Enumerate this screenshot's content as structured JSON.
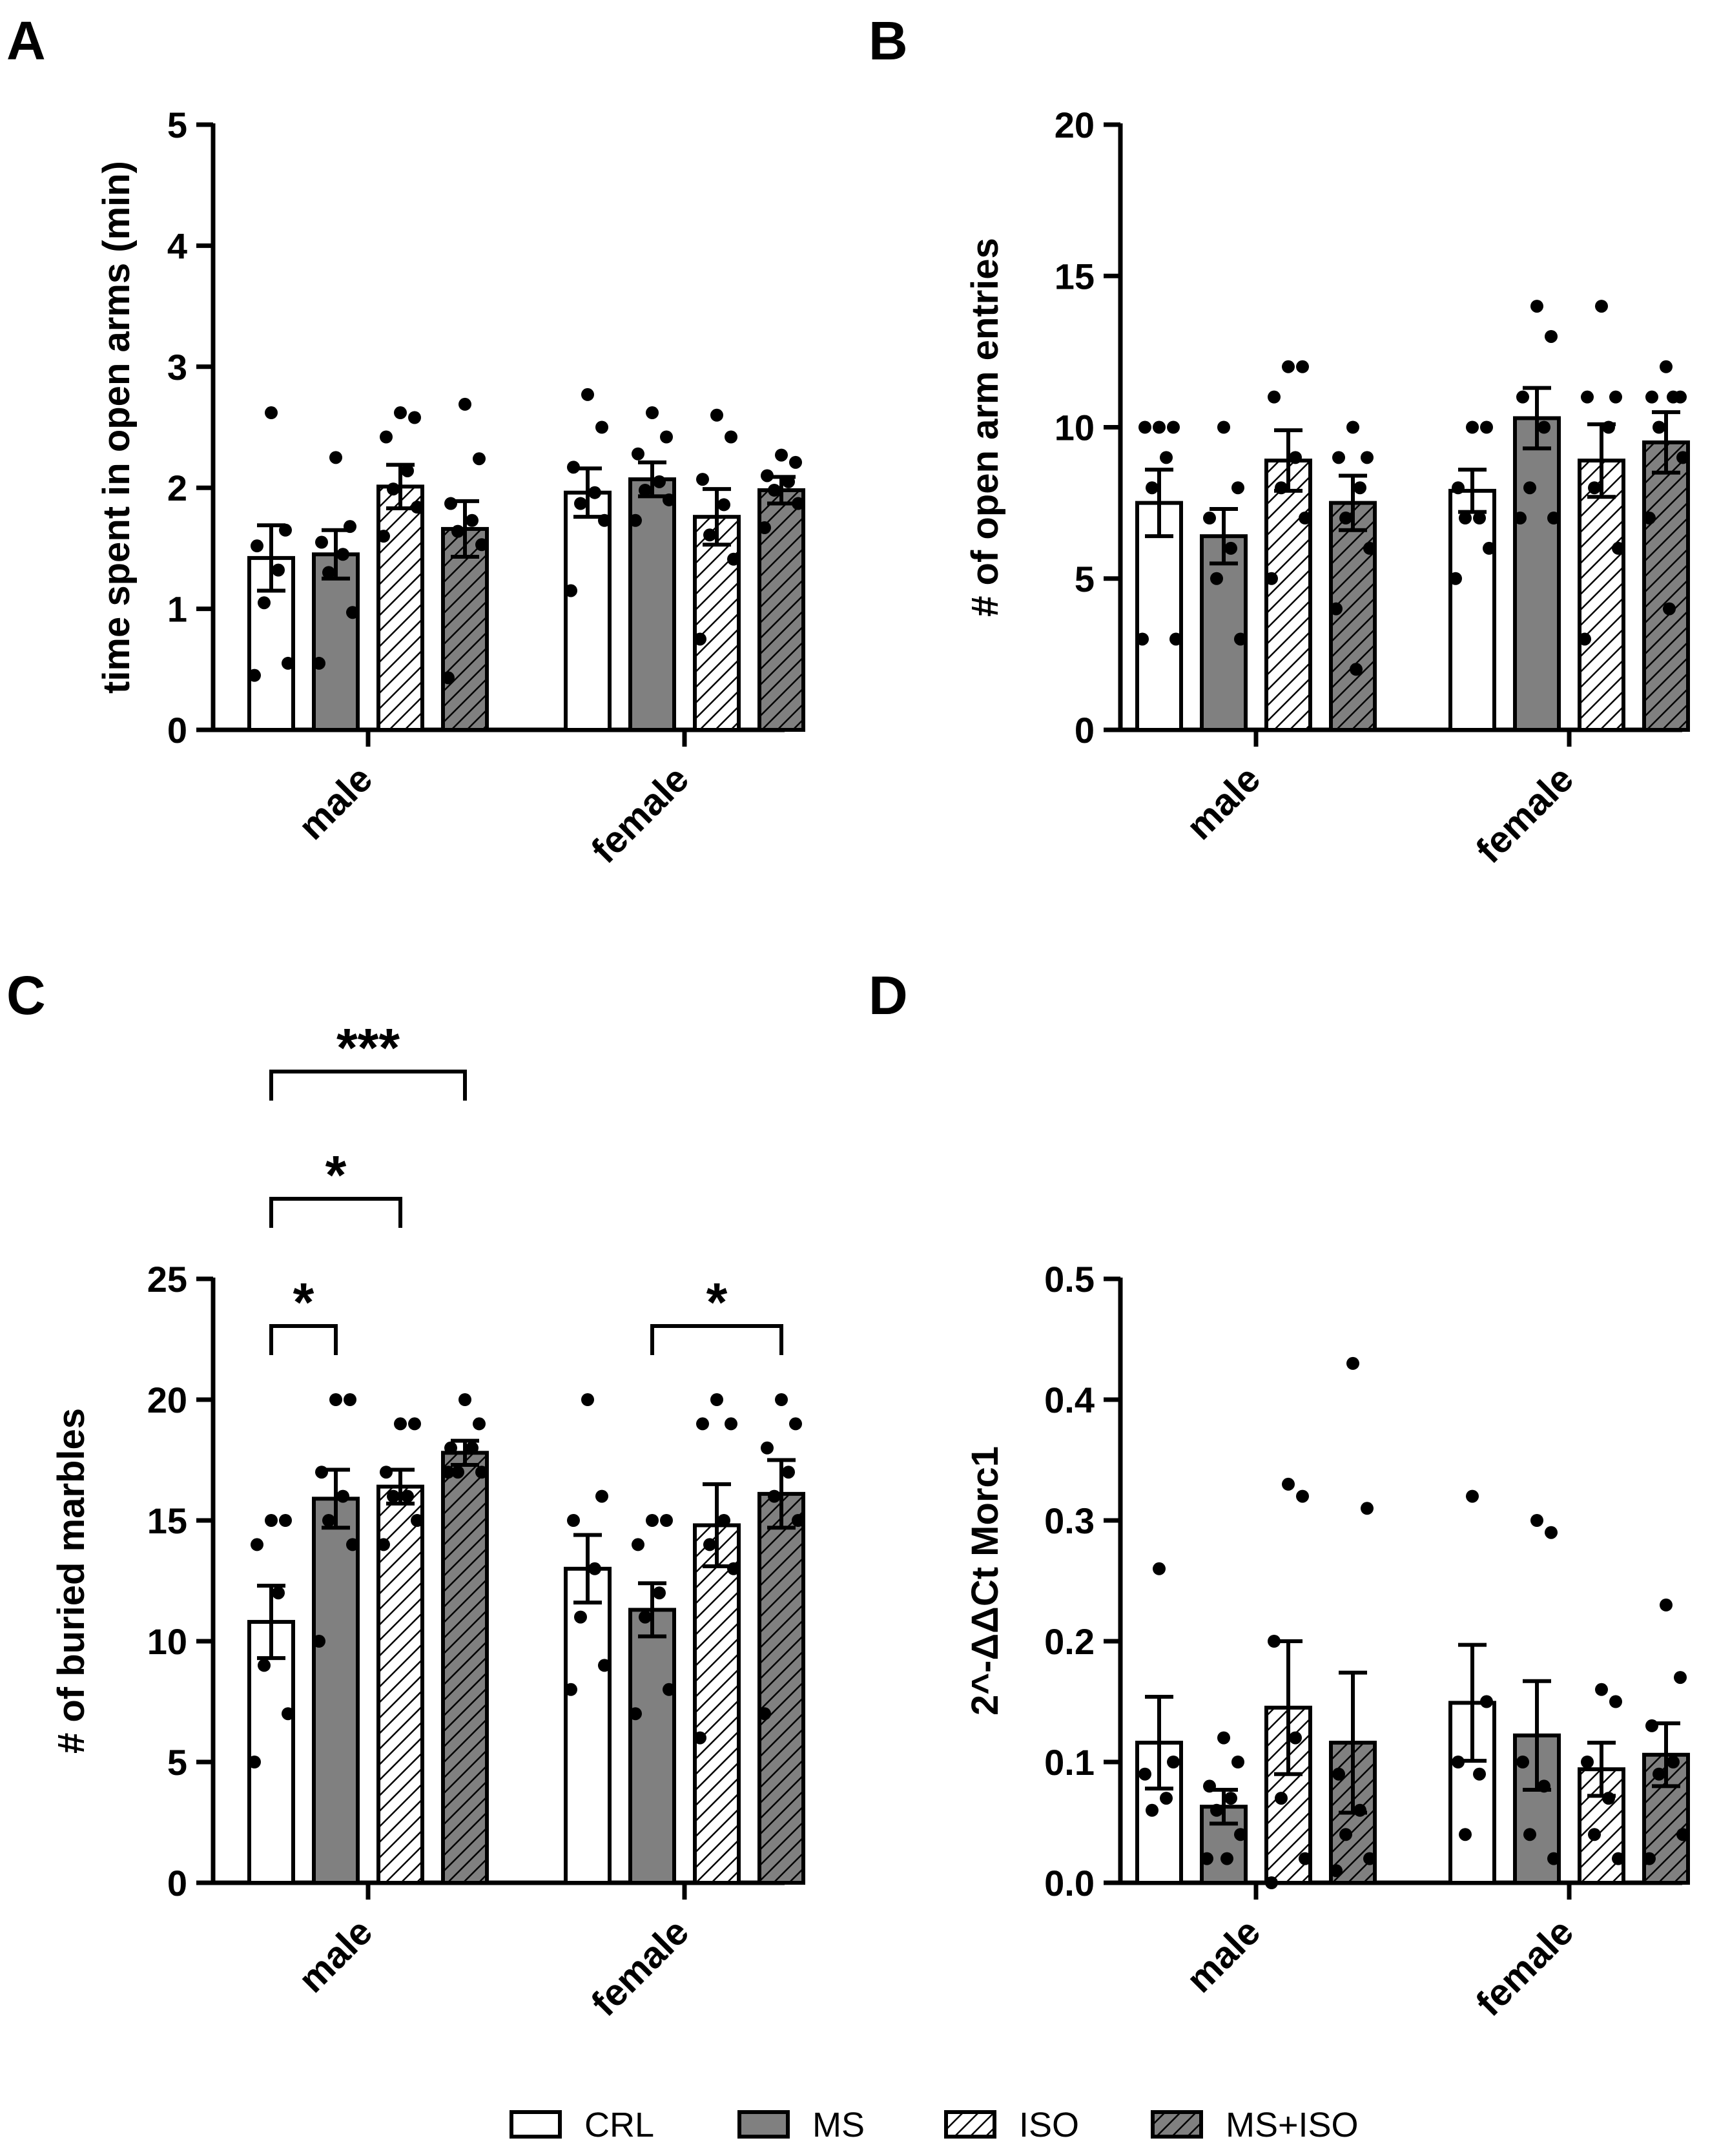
{
  "colors": {
    "CRL": "#ffffff",
    "MS": "#808080",
    "ISO": "#ffffff",
    "MS+ISO": "#808080",
    "stroke": "#000000"
  },
  "legend": [
    {
      "label": "CRL",
      "pattern": "solid-white"
    },
    {
      "label": "MS",
      "pattern": "solid-gray"
    },
    {
      "label": "ISO",
      "pattern": "hatch-white"
    },
    {
      "label": "MS+ISO",
      "pattern": "hatch-gray"
    }
  ],
  "chart_data": [
    {
      "panel": "A",
      "type": "bar",
      "ylabel": "time spent in open arms (min)",
      "ylim": [
        0,
        5
      ],
      "yticks": [
        0,
        1,
        2,
        3,
        4,
        5
      ],
      "categories": [
        "male",
        "female"
      ],
      "series": [
        {
          "name": "CRL",
          "values": [
            1.42,
            1.96
          ],
          "sem": [
            0.27,
            0.2
          ],
          "points": [
            [
              2.62,
              1.65,
              1.52,
              1.32,
              1.05,
              0.55,
              0.45
            ],
            [
              2.77,
              2.5,
              2.17,
              1.96,
              1.87,
              1.73,
              1.15
            ]
          ]
        },
        {
          "name": "MS",
          "values": [
            1.45,
            2.07
          ],
          "sem": [
            0.2,
            0.14
          ],
          "points": [
            [
              2.25,
              1.68,
              1.55,
              1.45,
              1.3,
              0.97,
              0.55
            ],
            [
              2.62,
              2.42,
              2.28,
              2.05,
              1.98,
              1.9,
              1.73
            ]
          ]
        },
        {
          "name": "ISO",
          "values": [
            2.01,
            1.76
          ],
          "sem": [
            0.18,
            0.23
          ],
          "points": [
            [
              2.62,
              2.58,
              2.42,
              2.14,
              1.99,
              1.84,
              1.6
            ],
            [
              2.6,
              2.42,
              2.07,
              1.86,
              1.61,
              1.41,
              0.75
            ]
          ]
        },
        {
          "name": "MS+ISO",
          "values": [
            1.66,
            1.98
          ],
          "sem": [
            0.23,
            0.11
          ],
          "points": [
            [
              2.69,
              2.24,
              1.87,
              1.73,
              1.64,
              1.53,
              0.43
            ],
            [
              2.27,
              2.21,
              2.1,
              2.05,
              1.98,
              1.87,
              1.67
            ]
          ]
        }
      ],
      "annotations": []
    },
    {
      "panel": "B",
      "type": "bar",
      "ylabel": "# of open arm entries",
      "ylim": [
        0,
        20
      ],
      "yticks": [
        0,
        5,
        10,
        15,
        20
      ],
      "categories": [
        "male",
        "female"
      ],
      "series": [
        {
          "name": "CRL",
          "values": [
            7.5,
            7.9
          ],
          "sem": [
            1.1,
            0.7
          ],
          "points": [
            [
              10,
              10,
              10,
              9,
              8,
              3,
              3
            ],
            [
              10,
              10,
              8,
              7,
              7,
              6,
              5
            ]
          ]
        },
        {
          "name": "MS",
          "values": [
            6.4,
            10.3
          ],
          "sem": [
            0.9,
            1.0
          ],
          "points": [
            [
              10,
              8,
              7,
              6,
              5,
              3
            ],
            [
              14,
              13,
              11,
              10,
              8,
              7,
              7
            ]
          ]
        },
        {
          "name": "ISO",
          "values": [
            8.9,
            8.9
          ],
          "sem": [
            1.0,
            1.2
          ],
          "points": [
            [
              12,
              12,
              11,
              9,
              8,
              7,
              5
            ],
            [
              14,
              11,
              11,
              10,
              8,
              6,
              3
            ]
          ]
        },
        {
          "name": "MS+ISO",
          "values": [
            7.5,
            9.5
          ],
          "sem": [
            0.9,
            1.0
          ],
          "points": [
            [
              10,
              9,
              9,
              8,
              7,
              6,
              4,
              2
            ],
            [
              12,
              11,
              11,
              11,
              10,
              9,
              7,
              4
            ]
          ]
        }
      ],
      "annotations": []
    },
    {
      "panel": "C",
      "type": "bar",
      "ylabel": "# of buried marbles",
      "ylim": [
        0,
        25
      ],
      "yticks": [
        0,
        5,
        10,
        15,
        20,
        25
      ],
      "categories": [
        "male",
        "female"
      ],
      "series": [
        {
          "name": "CRL",
          "values": [
            10.8,
            13.0
          ],
          "sem": [
            1.5,
            1.4
          ],
          "points": [
            [
              15,
              15,
              14,
              12,
              9,
              7,
              5
            ],
            [
              20,
              16,
              15,
              13,
              11,
              9,
              8
            ]
          ]
        },
        {
          "name": "MS",
          "values": [
            15.9,
            11.3
          ],
          "sem": [
            1.2,
            1.1
          ],
          "points": [
            [
              20,
              20,
              17,
              16,
              15,
              14,
              10
            ],
            [
              15,
              15,
              14,
              12,
              11,
              8,
              7
            ]
          ]
        },
        {
          "name": "ISO",
          "values": [
            16.4,
            14.8
          ],
          "sem": [
            0.7,
            1.7
          ],
          "points": [
            [
              19,
              19,
              17,
              16,
              16,
              15,
              14
            ],
            [
              20,
              19,
              19,
              15,
              14,
              13,
              6
            ]
          ]
        },
        {
          "name": "MS+ISO",
          "values": [
            17.8,
            16.1
          ],
          "sem": [
            0.5,
            1.4
          ],
          "points": [
            [
              20,
              19,
              18,
              18,
              17,
              17,
              17
            ],
            [
              20,
              19,
              18,
              17,
              16,
              15,
              7
            ]
          ]
        }
      ],
      "annotations": [
        {
          "label": "*",
          "category": 0,
          "from": 0,
          "to": 1,
          "level": 0
        },
        {
          "label": "*",
          "category": 0,
          "from": 0,
          "to": 2,
          "level": 1
        },
        {
          "label": "***",
          "category": 0,
          "from": 0,
          "to": 3,
          "level": 2
        },
        {
          "label": "*",
          "category": 1,
          "from": 1,
          "to": 3,
          "level": 0
        }
      ]
    },
    {
      "panel": "D",
      "type": "bar",
      "ylabel": "2^-ΔΔCt  Morc1",
      "ylim": [
        0,
        0.5
      ],
      "yticks": [
        "0.0",
        "0.1",
        "0.2",
        "0.3",
        "0.4",
        "0.5"
      ],
      "categories": [
        "male",
        "female"
      ],
      "series": [
        {
          "name": "CRL",
          "values": [
            0.116,
            0.149
          ],
          "sem": [
            0.038,
            0.048
          ],
          "points": [
            [
              0.26,
              0.1,
              0.09,
              0.07,
              0.06
            ],
            [
              0.32,
              0.15,
              0.1,
              0.09,
              0.04
            ]
          ]
        },
        {
          "name": "MS",
          "values": [
            0.063,
            0.122
          ],
          "sem": [
            0.014,
            0.045
          ],
          "points": [
            [
              0.12,
              0.1,
              0.08,
              0.07,
              0.06,
              0.04,
              0.02,
              0.02
            ],
            [
              0.3,
              0.29,
              0.1,
              0.08,
              0.04,
              0.02
            ]
          ]
        },
        {
          "name": "ISO",
          "values": [
            0.145,
            0.094
          ],
          "sem": [
            0.055,
            0.022
          ],
          "points": [
            [
              0.33,
              0.32,
              0.2,
              0.12,
              0.07,
              0.02,
              0.0
            ],
            [
              0.16,
              0.15,
              0.1,
              0.07,
              0.04,
              0.02
            ]
          ]
        },
        {
          "name": "MS+ISO",
          "values": [
            0.116,
            0.106
          ],
          "sem": [
            0.058,
            0.026
          ],
          "points": [
            [
              0.43,
              0.31,
              0.09,
              0.06,
              0.04,
              0.02,
              0.01
            ],
            [
              0.23,
              0.17,
              0.13,
              0.1,
              0.09,
              0.04,
              0.02
            ]
          ]
        }
      ],
      "annotations": []
    }
  ]
}
